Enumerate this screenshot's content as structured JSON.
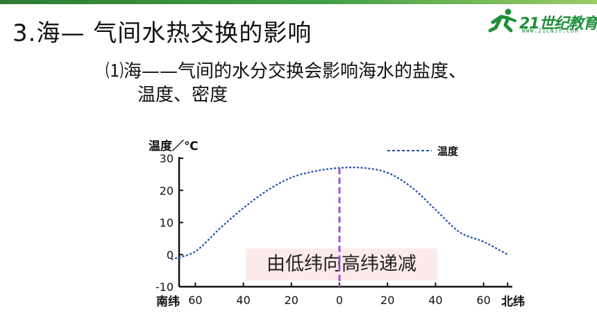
{
  "slide": {
    "title": "3.海— 气间水热交换的影响",
    "subtitle_line1": "⑴海——气间的水分交换会影响海水的盐度、",
    "subtitle_line2": "温度、密度",
    "logo_text": "21世纪教育",
    "logo_url": "WWW.21CNJY.COM",
    "colors": {
      "topbar": "#2e7d32",
      "logo_green": "#1f8e3b",
      "curve": "#1f4fa8",
      "equator_line": "#a44de0",
      "annotation_bg": "#fce8e8"
    }
  },
  "chart_data": {
    "type": "line",
    "ylabel": "温度／℃",
    "legend": "温度",
    "legend_position": "top-right",
    "ylim": [
      -10,
      30
    ],
    "yticks": [
      -10,
      0,
      10,
      20,
      30
    ],
    "xticks": [
      {
        "lat": -60,
        "label": "60"
      },
      {
        "lat": -40,
        "label": "40"
      },
      {
        "lat": -20,
        "label": "20"
      },
      {
        "lat": 0,
        "label": "0"
      },
      {
        "lat": 20,
        "label": "20"
      },
      {
        "lat": 40,
        "label": "40"
      },
      {
        "lat": 60,
        "label": "60"
      }
    ],
    "xlabel_left": "南纬",
    "xlabel_right": "北纬",
    "series": [
      {
        "name": "温度",
        "style": "dashed",
        "x": [
          -70,
          -60,
          -50,
          -40,
          -30,
          -20,
          -10,
          0,
          10,
          20,
          30,
          40,
          50,
          60,
          70
        ],
        "y": [
          -1.5,
          1,
          8,
          14.5,
          20,
          24,
          26,
          27,
          27,
          25.5,
          21,
          14,
          7,
          4,
          0
        ]
      }
    ],
    "vertical_marker": {
      "x": 0,
      "style": "dashed",
      "color": "#a44de0"
    },
    "annotation": "由低纬向高纬递减",
    "grid": false
  }
}
